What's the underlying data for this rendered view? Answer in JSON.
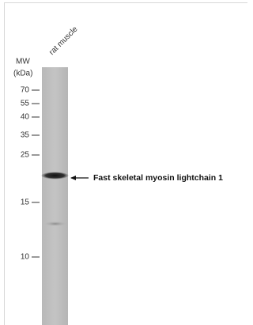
{
  "lane_label": "rat muscle",
  "mw_label": "MW",
  "unit_label": "(kDa)",
  "markers": [
    70,
    55,
    40,
    35,
    25,
    15,
    10
  ],
  "band_label": "Fast skeletal myosin lightchain 1"
}
